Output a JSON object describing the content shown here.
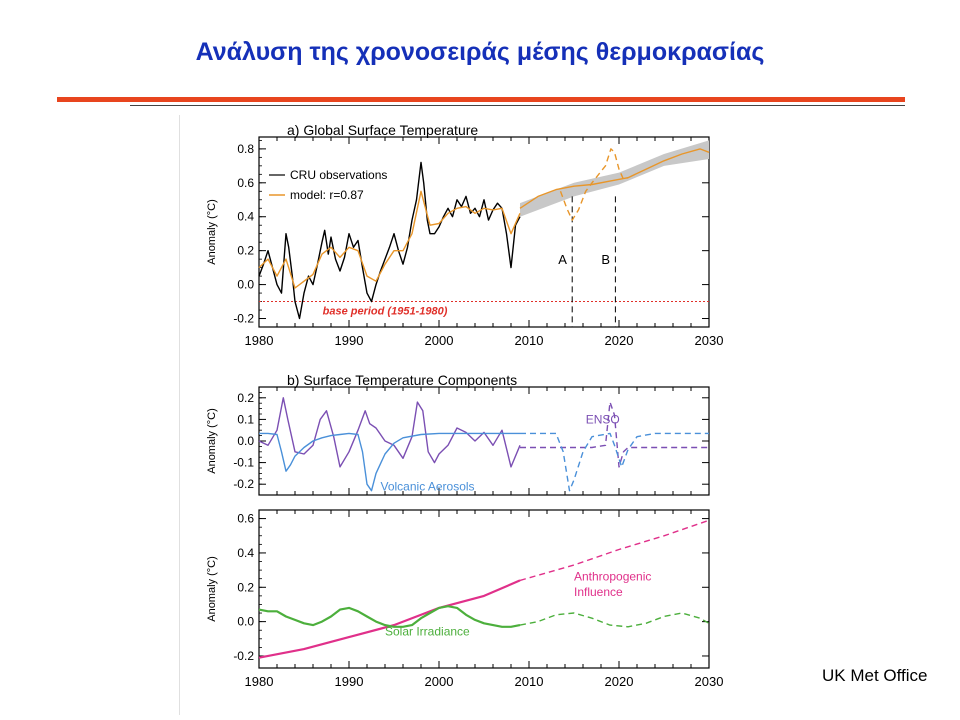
{
  "slide": {
    "title": "Ανάλυση της χρονοσειράς μέσης θερμοκρασίας",
    "credit": "UK Met Office",
    "accent_color": "#e8451e",
    "title_color": "#1530b8"
  },
  "chart_data": [
    {
      "type": "line",
      "panel": "a",
      "title": "a) Global Surface Temperature",
      "ylabel": "Anomaly (°C)",
      "xlim": [
        1980,
        2030
      ],
      "ylim": [
        -0.25,
        0.87
      ],
      "xticks": [
        1980,
        1990,
        2000,
        2010,
        2020,
        2030
      ],
      "yticks": [
        -0.2,
        0.0,
        0.2,
        0.4,
        0.6,
        0.8
      ],
      "ytick_labels": [
        "-0.2",
        "0.0",
        "0.2",
        "0.4",
        "0.6",
        "0.8"
      ],
      "legend": [
        "CRU observations",
        "model: r=0.87"
      ],
      "legend_position": "top-left",
      "base_period_label": "base period (1951-1980)",
      "base_period_value": -0.1,
      "markers": [
        {
          "label": "A",
          "x": 2014.8
        },
        {
          "label": "B",
          "x": 2019.6
        }
      ],
      "series": [
        {
          "name": "CRU observations",
          "color": "#000000",
          "x": [
            1980,
            1980.5,
            1981,
            1981.5,
            1982,
            1982.5,
            1983,
            1983.3,
            1983.7,
            1984,
            1984.5,
            1985,
            1985.5,
            1986,
            1986.5,
            1987,
            1987.3,
            1987.7,
            1988,
            1988.5,
            1989,
            1989.5,
            1990,
            1990.5,
            1991,
            1991.5,
            1992,
            1992.5,
            1993,
            1993.5,
            1994,
            1994.5,
            1995,
            1995.5,
            1996,
            1996.5,
            1997,
            1997.5,
            1998,
            1998.3,
            1998.7,
            1999,
            1999.5,
            2000,
            2000.5,
            2001,
            2001.5,
            2002,
            2002.5,
            2003,
            2003.5,
            2004,
            2004.5,
            2005,
            2005.5,
            2006,
            2006.5,
            2007,
            2007.5,
            2008,
            2008.5,
            2009
          ],
          "values": [
            0.05,
            0.12,
            0.2,
            0.1,
            0.0,
            -0.05,
            0.3,
            0.22,
            0.05,
            -0.1,
            -0.2,
            -0.05,
            0.05,
            0.0,
            0.12,
            0.25,
            0.32,
            0.18,
            0.28,
            0.15,
            0.08,
            0.16,
            0.3,
            0.22,
            0.26,
            0.1,
            -0.05,
            -0.1,
            0.0,
            0.08,
            0.15,
            0.22,
            0.3,
            0.2,
            0.12,
            0.22,
            0.38,
            0.5,
            0.72,
            0.6,
            0.38,
            0.3,
            0.3,
            0.34,
            0.4,
            0.45,
            0.4,
            0.5,
            0.46,
            0.52,
            0.42,
            0.45,
            0.4,
            0.5,
            0.38,
            0.44,
            0.48,
            0.45,
            0.3,
            0.1,
            0.35,
            0.4
          ]
        },
        {
          "name": "model: r=0.87",
          "color": "#e8962a",
          "x": [
            1980,
            1981,
            1982,
            1983,
            1984,
            1985,
            1986,
            1987,
            1988,
            1989,
            1990,
            1991,
            1992,
            1993,
            1994,
            1995,
            1996,
            1997,
            1998,
            1999,
            2000,
            2001,
            2002,
            2003,
            2004,
            2005,
            2006,
            2007,
            2008,
            2009
          ],
          "values": [
            0.1,
            0.15,
            0.05,
            0.15,
            -0.02,
            0.02,
            0.06,
            0.18,
            0.22,
            0.16,
            0.22,
            0.2,
            0.05,
            0.02,
            0.12,
            0.2,
            0.2,
            0.3,
            0.55,
            0.35,
            0.36,
            0.42,
            0.45,
            0.46,
            0.42,
            0.45,
            0.44,
            0.45,
            0.3,
            0.42
          ]
        },
        {
          "name": "forecast",
          "color": "#e8962a",
          "x": [
            2009,
            2011,
            2013,
            2015,
            2017,
            2019,
            2021,
            2023,
            2025,
            2027,
            2029,
            2030
          ],
          "values": [
            0.45,
            0.52,
            0.56,
            0.58,
            0.59,
            0.61,
            0.63,
            0.68,
            0.73,
            0.77,
            0.8,
            0.78
          ]
        },
        {
          "name": "forecast with volcanic events",
          "color": "#e8962a",
          "dashed": true,
          "x": [
            2013.5,
            2014.2,
            2014.8,
            2015.5,
            2016.3,
            2017,
            2018.5,
            2019.1,
            2019.5,
            2020,
            2020.5,
            2021
          ],
          "values": [
            0.55,
            0.45,
            0.38,
            0.44,
            0.55,
            0.6,
            0.7,
            0.8,
            0.78,
            0.68,
            0.62,
            0.63
          ]
        }
      ]
    },
    {
      "type": "line",
      "panel": "b",
      "title": "b) Surface Temperature Components",
      "ylabel": "Anomaly (°C)",
      "xlim": [
        1980,
        2030
      ],
      "ylim": [
        -0.25,
        0.25
      ],
      "yticks": [
        -0.2,
        -0.1,
        0.0,
        0.1,
        0.2
      ],
      "ytick_labels": [
        "-0.2",
        "-0.1",
        "0.0",
        "0.1",
        "0.2"
      ],
      "annotations": [
        "ENSO",
        "Volcanic Aerosols"
      ],
      "series": [
        {
          "name": "ENSO",
          "color": "#7b4fb3",
          "x": [
            1980,
            1981,
            1982,
            1982.7,
            1983.2,
            1984,
            1985,
            1986,
            1986.8,
            1987.5,
            1988.3,
            1989,
            1990,
            1991,
            1991.8,
            1992.3,
            1993,
            1994,
            1995,
            1996,
            1997,
            1997.6,
            1998.2,
            1998.8,
            1999.5,
            2000,
            2001,
            2002,
            2003,
            2004,
            2005,
            2006,
            2007,
            2008,
            2009
          ],
          "values": [
            0.0,
            -0.02,
            0.05,
            0.2,
            0.1,
            -0.05,
            -0.06,
            -0.02,
            0.1,
            0.14,
            0.02,
            -0.12,
            -0.05,
            0.05,
            0.14,
            0.08,
            0.06,
            0.0,
            -0.02,
            -0.08,
            0.02,
            0.18,
            0.14,
            -0.05,
            -0.1,
            -0.06,
            -0.02,
            0.06,
            0.04,
            0.0,
            0.04,
            -0.02,
            0.05,
            -0.12,
            -0.02
          ]
        },
        {
          "name": "ENSO forecast",
          "color": "#7b4fb3",
          "dashed": true,
          "x": [
            2009,
            2012,
            2015,
            2017,
            2018.5,
            2019,
            2019.5,
            2020,
            2020.5,
            2021,
            2022,
            2030
          ],
          "values": [
            -0.03,
            -0.03,
            -0.03,
            -0.03,
            -0.02,
            0.18,
            0.12,
            -0.12,
            -0.05,
            -0.03,
            -0.03,
            -0.03
          ]
        },
        {
          "name": "Volcanic Aerosols",
          "color": "#4a90d9",
          "x": [
            1980,
            1981,
            1982,
            1982.5,
            1983,
            1983.5,
            1984,
            1985,
            1986,
            1987,
            1988,
            1989,
            1990,
            1991,
            1991.5,
            1992,
            1992.5,
            1993,
            1994,
            1995,
            1996,
            1998,
            2000,
            2002,
            2005,
            2009
          ],
          "values": [
            0.035,
            0.035,
            0.03,
            -0.05,
            -0.14,
            -0.11,
            -0.07,
            -0.03,
            0.0,
            0.015,
            0.025,
            0.03,
            0.035,
            0.03,
            -0.05,
            -0.2,
            -0.23,
            -0.15,
            -0.06,
            -0.01,
            0.015,
            0.03,
            0.035,
            0.035,
            0.035,
            0.035
          ]
        },
        {
          "name": "Volcanic Aerosols forecast",
          "color": "#4a90d9",
          "dashed": true,
          "x": [
            2009,
            2013,
            2013.8,
            2014.5,
            2015,
            2016,
            2017,
            2019,
            2019.5,
            2020.3,
            2021,
            2022,
            2024,
            2030
          ],
          "values": [
            0.035,
            0.035,
            -0.05,
            -0.23,
            -0.18,
            -0.05,
            0.02,
            0.035,
            -0.02,
            -0.12,
            -0.04,
            0.02,
            0.035,
            0.035
          ]
        }
      ]
    },
    {
      "type": "line",
      "panel": "c",
      "ylabel": "Anomaly (°C)",
      "xlim": [
        1980,
        2030
      ],
      "ylim": [
        -0.27,
        0.65
      ],
      "xticks": [
        1980,
        1990,
        2000,
        2010,
        2020,
        2030
      ],
      "yticks": [
        -0.2,
        0.0,
        0.2,
        0.4,
        0.6
      ],
      "ytick_labels": [
        "-0.2",
        "0.0",
        "0.2",
        "0.4",
        "0.6"
      ],
      "annotations": [
        "Anthropogenic Influence",
        "Solar Irradiance"
      ],
      "series": [
        {
          "name": "Anthropogenic Influence",
          "color": "#e0308a",
          "x": [
            1980,
            1985,
            1990,
            1995,
            2000,
            2005,
            2009
          ],
          "values": [
            -0.21,
            -0.16,
            -0.09,
            -0.02,
            0.08,
            0.15,
            0.24
          ]
        },
        {
          "name": "Anthropogenic Influence forecast",
          "color": "#e0308a",
          "dashed": true,
          "x": [
            2009,
            2015,
            2020,
            2025,
            2030
          ],
          "values": [
            0.24,
            0.33,
            0.42,
            0.5,
            0.59
          ]
        },
        {
          "name": "Solar Irradiance",
          "color": "#4caf3c",
          "x": [
            1980,
            1981,
            1982,
            1983,
            1984,
            1985,
            1986,
            1987,
            1988,
            1989,
            1990,
            1991,
            1992,
            1993,
            1994,
            1995,
            1996,
            1997,
            1998,
            1999,
            2000,
            2001,
            2002,
            2003,
            2004,
            2005,
            2006,
            2007,
            2008,
            2009
          ],
          "values": [
            0.07,
            0.06,
            0.06,
            0.03,
            0.01,
            -0.01,
            -0.02,
            0.0,
            0.03,
            0.07,
            0.08,
            0.06,
            0.03,
            0.0,
            -0.02,
            -0.03,
            -0.03,
            -0.02,
            0.02,
            0.05,
            0.08,
            0.09,
            0.08,
            0.04,
            0.01,
            -0.01,
            -0.02,
            -0.03,
            -0.03,
            -0.02
          ]
        },
        {
          "name": "Solar Irradiance forecast",
          "color": "#4caf3c",
          "dashed": true,
          "x": [
            2009,
            2011,
            2013,
            2015,
            2017,
            2019,
            2021,
            2023,
            2025,
            2027,
            2029,
            2030
          ],
          "values": [
            -0.02,
            0.0,
            0.04,
            0.05,
            0.02,
            -0.02,
            -0.03,
            -0.01,
            0.03,
            0.05,
            0.02,
            -0.01
          ]
        }
      ]
    }
  ]
}
